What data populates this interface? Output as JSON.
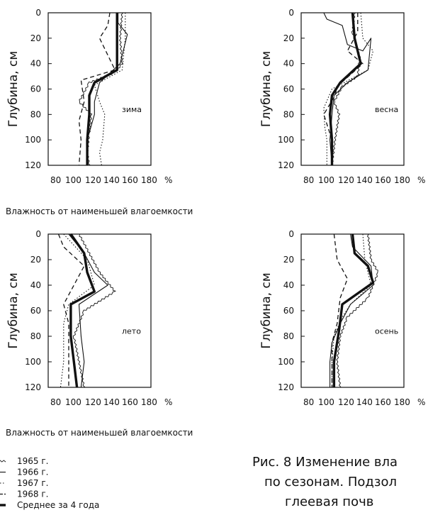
{
  "figure": {
    "ylabel": "Глубина, см",
    "xlabel": "Влажность от наименьшей влагоемкости",
    "x_tick_labels_line": "80 100 120 140 160 180 %",
    "caption_lines": [
      "Рис. 8 Изменение вла",
      "по сезонам. Подзол",
      "глеевая почв"
    ]
  },
  "legend": [
    {
      "label": "1965 г.",
      "style": "thin-wavy"
    },
    {
      "label": "1966 г.",
      "style": "thin"
    },
    {
      "label": "1967 г.",
      "style": "dotted"
    },
    {
      "label": "1968 г.",
      "style": "dashed"
    },
    {
      "label": "Среднее за 4 года",
      "style": "thick"
    }
  ],
  "chart_data": [
    {
      "type": "line",
      "season": "зима",
      "ylabel": "Глубина, см",
      "xlabel": "Влажность от наименьшей влагоемкости",
      "y_ticks": [
        0,
        20,
        40,
        60,
        80,
        100,
        120
      ],
      "ylim": [
        0,
        120
      ],
      "y_inverted": true,
      "x_ticks": [
        80,
        100,
        120,
        140,
        160,
        180
      ],
      "x_unit": "%",
      "xlim": [
        80,
        180
      ],
      "series": [
        {
          "name": "1965 г.",
          "style": "thin-wavy",
          "points": [
            [
              152,
              0
            ],
            [
              150,
              20
            ],
            [
              152,
              40
            ],
            [
              145,
              47
            ],
            [
              120,
              55
            ],
            [
              110,
              70
            ],
            [
              122,
              80
            ],
            [
              120,
              95
            ],
            [
              118,
              110
            ],
            [
              120,
              120
            ]
          ]
        },
        {
          "name": "1966 г.",
          "style": "thin",
          "points": [
            [
              148,
              0
            ],
            [
              148,
              8
            ],
            [
              157,
              17
            ],
            [
              150,
              40
            ],
            [
              130,
              55
            ],
            [
              125,
              70
            ],
            [
              125,
              80
            ],
            [
              118,
              100
            ],
            [
              118,
              120
            ]
          ]
        },
        {
          "name": "1967 г.",
          "style": "dotted",
          "points": [
            [
              155,
              0
            ],
            [
              155,
              20
            ],
            [
              152,
              45
            ],
            [
              125,
              57
            ],
            [
              130,
              70
            ],
            [
              135,
              80
            ],
            [
              133,
              100
            ],
            [
              130,
              110
            ],
            [
              132,
              120
            ]
          ]
        },
        {
          "name": "1968 г.",
          "style": "dashed",
          "points": [
            [
              140,
              0
            ],
            [
              138,
              10
            ],
            [
              130,
              20
            ],
            [
              145,
              45
            ],
            [
              112,
              53
            ],
            [
              115,
              70
            ],
            [
              110,
              85
            ],
            [
              112,
              100
            ],
            [
              110,
              120
            ]
          ]
        },
        {
          "name": "Среднее за 4 года",
          "style": "thick",
          "points": [
            [
              147,
              0
            ],
            [
              147,
              20
            ],
            [
              147,
              45
            ],
            [
              125,
              55
            ],
            [
              120,
              65
            ],
            [
              120,
              80
            ],
            [
              118,
              100
            ],
            [
              118,
              120
            ]
          ]
        }
      ]
    },
    {
      "type": "line",
      "season": "весна",
      "ylabel": "Глубина, см",
      "xlabel": "",
      "y_ticks": [
        0,
        20,
        40,
        60,
        80,
        100,
        120
      ],
      "ylim": [
        0,
        120
      ],
      "y_inverted": true,
      "x_ticks": [
        80,
        100,
        120,
        140,
        160,
        180
      ],
      "x_unit": "%",
      "xlim": [
        80,
        180
      ],
      "series": [
        {
          "name": "1965 г.",
          "style": "thin-wavy",
          "points": [
            [
              132,
              0
            ],
            [
              130,
              15
            ],
            [
              137,
              35
            ],
            [
              135,
              50
            ],
            [
              120,
              58
            ],
            [
              112,
              70
            ],
            [
              117,
              80
            ],
            [
              113,
              100
            ],
            [
              110,
              120
            ]
          ]
        },
        {
          "name": "1966 г.",
          "style": "thin",
          "points": [
            [
              102,
              0
            ],
            [
              105,
              5
            ],
            [
              120,
              10
            ],
            [
              125,
              25
            ],
            [
              140,
              30
            ],
            [
              148,
              20
            ],
            [
              145,
              45
            ],
            [
              125,
              55
            ],
            [
              112,
              65
            ],
            [
              110,
              80
            ],
            [
              108,
              100
            ],
            [
              110,
              120
            ]
          ]
        },
        {
          "name": "1967 г.",
          "style": "dotted",
          "points": [
            [
              138,
              0
            ],
            [
              140,
              20
            ],
            [
              150,
              30
            ],
            [
              145,
              45
            ],
            [
              110,
              60
            ],
            [
              102,
              75
            ],
            [
              103,
              90
            ],
            [
              105,
              100
            ],
            [
              105,
              120
            ]
          ]
        },
        {
          "name": "1968 г.",
          "style": "dashed",
          "points": [
            [
              135,
              0
            ],
            [
              135,
              15
            ],
            [
              125,
              30
            ],
            [
              140,
              40
            ],
            [
              115,
              58
            ],
            [
              113,
              65
            ],
            [
              102,
              80
            ],
            [
              110,
              100
            ],
            [
              110,
              120
            ]
          ]
        },
        {
          "name": "Среднее за 4 года",
          "style": "thick",
          "points": [
            [
              130,
              0
            ],
            [
              132,
              20
            ],
            [
              138,
              40
            ],
            [
              118,
              55
            ],
            [
              110,
              65
            ],
            [
              108,
              80
            ],
            [
              110,
              100
            ],
            [
              110,
              120
            ]
          ]
        }
      ]
    },
    {
      "type": "line",
      "season": "лето",
      "ylabel": "Глубина, см",
      "xlabel": "Влажность от наименьшей влагоемкости",
      "y_ticks": [
        0,
        20,
        40,
        60,
        80,
        100,
        120
      ],
      "ylim": [
        0,
        120
      ],
      "y_inverted": true,
      "x_ticks": [
        80,
        100,
        120,
        140,
        160,
        180
      ],
      "x_unit": "%",
      "xlim": [
        80,
        180
      ],
      "series": [
        {
          "name": "1965 г.",
          "style": "thin-wavy",
          "points": [
            [
              110,
              0
            ],
            [
              120,
              15
            ],
            [
              130,
              30
            ],
            [
              145,
              45
            ],
            [
              115,
              60
            ],
            [
              105,
              80
            ],
            [
              110,
              100
            ],
            [
              115,
              120
            ]
          ]
        },
        {
          "name": "1966 г.",
          "style": "thin",
          "points": [
            [
              100,
              0
            ],
            [
              115,
              15
            ],
            [
              125,
              30
            ],
            [
              138,
              40
            ],
            [
              110,
              55
            ],
            [
              112,
              80
            ],
            [
              115,
              100
            ],
            [
              112,
              120
            ]
          ]
        },
        {
          "name": "1967 г.",
          "style": "dotted",
          "points": [
            [
              95,
              0
            ],
            [
              118,
              20
            ],
            [
              125,
              40
            ],
            [
              100,
              55
            ],
            [
              95,
              70
            ],
            [
              95,
              100
            ],
            [
              92,
              120
            ]
          ]
        },
        {
          "name": "1968 г.",
          "style": "dashed",
          "points": [
            [
              90,
              0
            ],
            [
              95,
              10
            ],
            [
              115,
              25
            ],
            [
              95,
              55
            ],
            [
              100,
              70
            ],
            [
              100,
              100
            ],
            [
              100,
              120
            ]
          ]
        },
        {
          "name": "Среднее за 4 года",
          "style": "thick",
          "points": [
            [
              102,
              0
            ],
            [
              115,
              15
            ],
            [
              118,
              30
            ],
            [
              125,
              45
            ],
            [
              102,
              55
            ],
            [
              102,
              80
            ],
            [
              105,
              100
            ],
            [
              108,
              120
            ]
          ]
        }
      ]
    },
    {
      "type": "line",
      "season": "осень",
      "ylabel": "Глубина, см",
      "xlabel": "Влажность от наименьшей влагоемкости",
      "y_ticks": [
        0,
        20,
        40,
        60,
        80,
        100,
        120
      ],
      "ylim": [
        0,
        120
      ],
      "y_inverted": true,
      "x_ticks": [
        80,
        100,
        120,
        140,
        160,
        180
      ],
      "x_unit": "%",
      "xlim": [
        80,
        180
      ],
      "series": [
        {
          "name": "1965 г.",
          "style": "thin-wavy",
          "points": [
            [
              145,
              0
            ],
            [
              148,
              20
            ],
            [
              155,
              30
            ],
            [
              145,
              50
            ],
            [
              125,
              65
            ],
            [
              118,
              80
            ],
            [
              115,
              100
            ],
            [
              118,
              120
            ]
          ]
        },
        {
          "name": "1966 г.",
          "style": "thin",
          "points": [
            [
              128,
              0
            ],
            [
              130,
              10
            ],
            [
              148,
              25
            ],
            [
              150,
              40
            ],
            [
              128,
              55
            ],
            [
              118,
              70
            ],
            [
              110,
              85
            ],
            [
              108,
              100
            ],
            [
              108,
              120
            ]
          ]
        },
        {
          "name": "1967 г.",
          "style": "dotted",
          "points": [
            [
              140,
              0
            ],
            [
              142,
              20
            ],
            [
              148,
              40
            ],
            [
              128,
              55
            ],
            [
              120,
              65
            ],
            [
              112,
              80
            ],
            [
              110,
              100
            ],
            [
              110,
              120
            ]
          ]
        },
        {
          "name": "1968 г.",
          "style": "dashed",
          "points": [
            [
              112,
              0
            ],
            [
              115,
              20
            ],
            [
              125,
              35
            ],
            [
              118,
              50
            ],
            [
              115,
              70
            ],
            [
              110,
              85
            ],
            [
              110,
              100
            ],
            [
              110,
              120
            ]
          ]
        },
        {
          "name": "Среднее за 4 года",
          "style": "thick",
          "points": [
            [
              130,
              0
            ],
            [
              132,
              15
            ],
            [
              145,
              25
            ],
            [
              150,
              38
            ],
            [
              120,
              55
            ],
            [
              117,
              75
            ],
            [
              112,
              100
            ],
            [
              112,
              120
            ]
          ]
        }
      ]
    }
  ]
}
